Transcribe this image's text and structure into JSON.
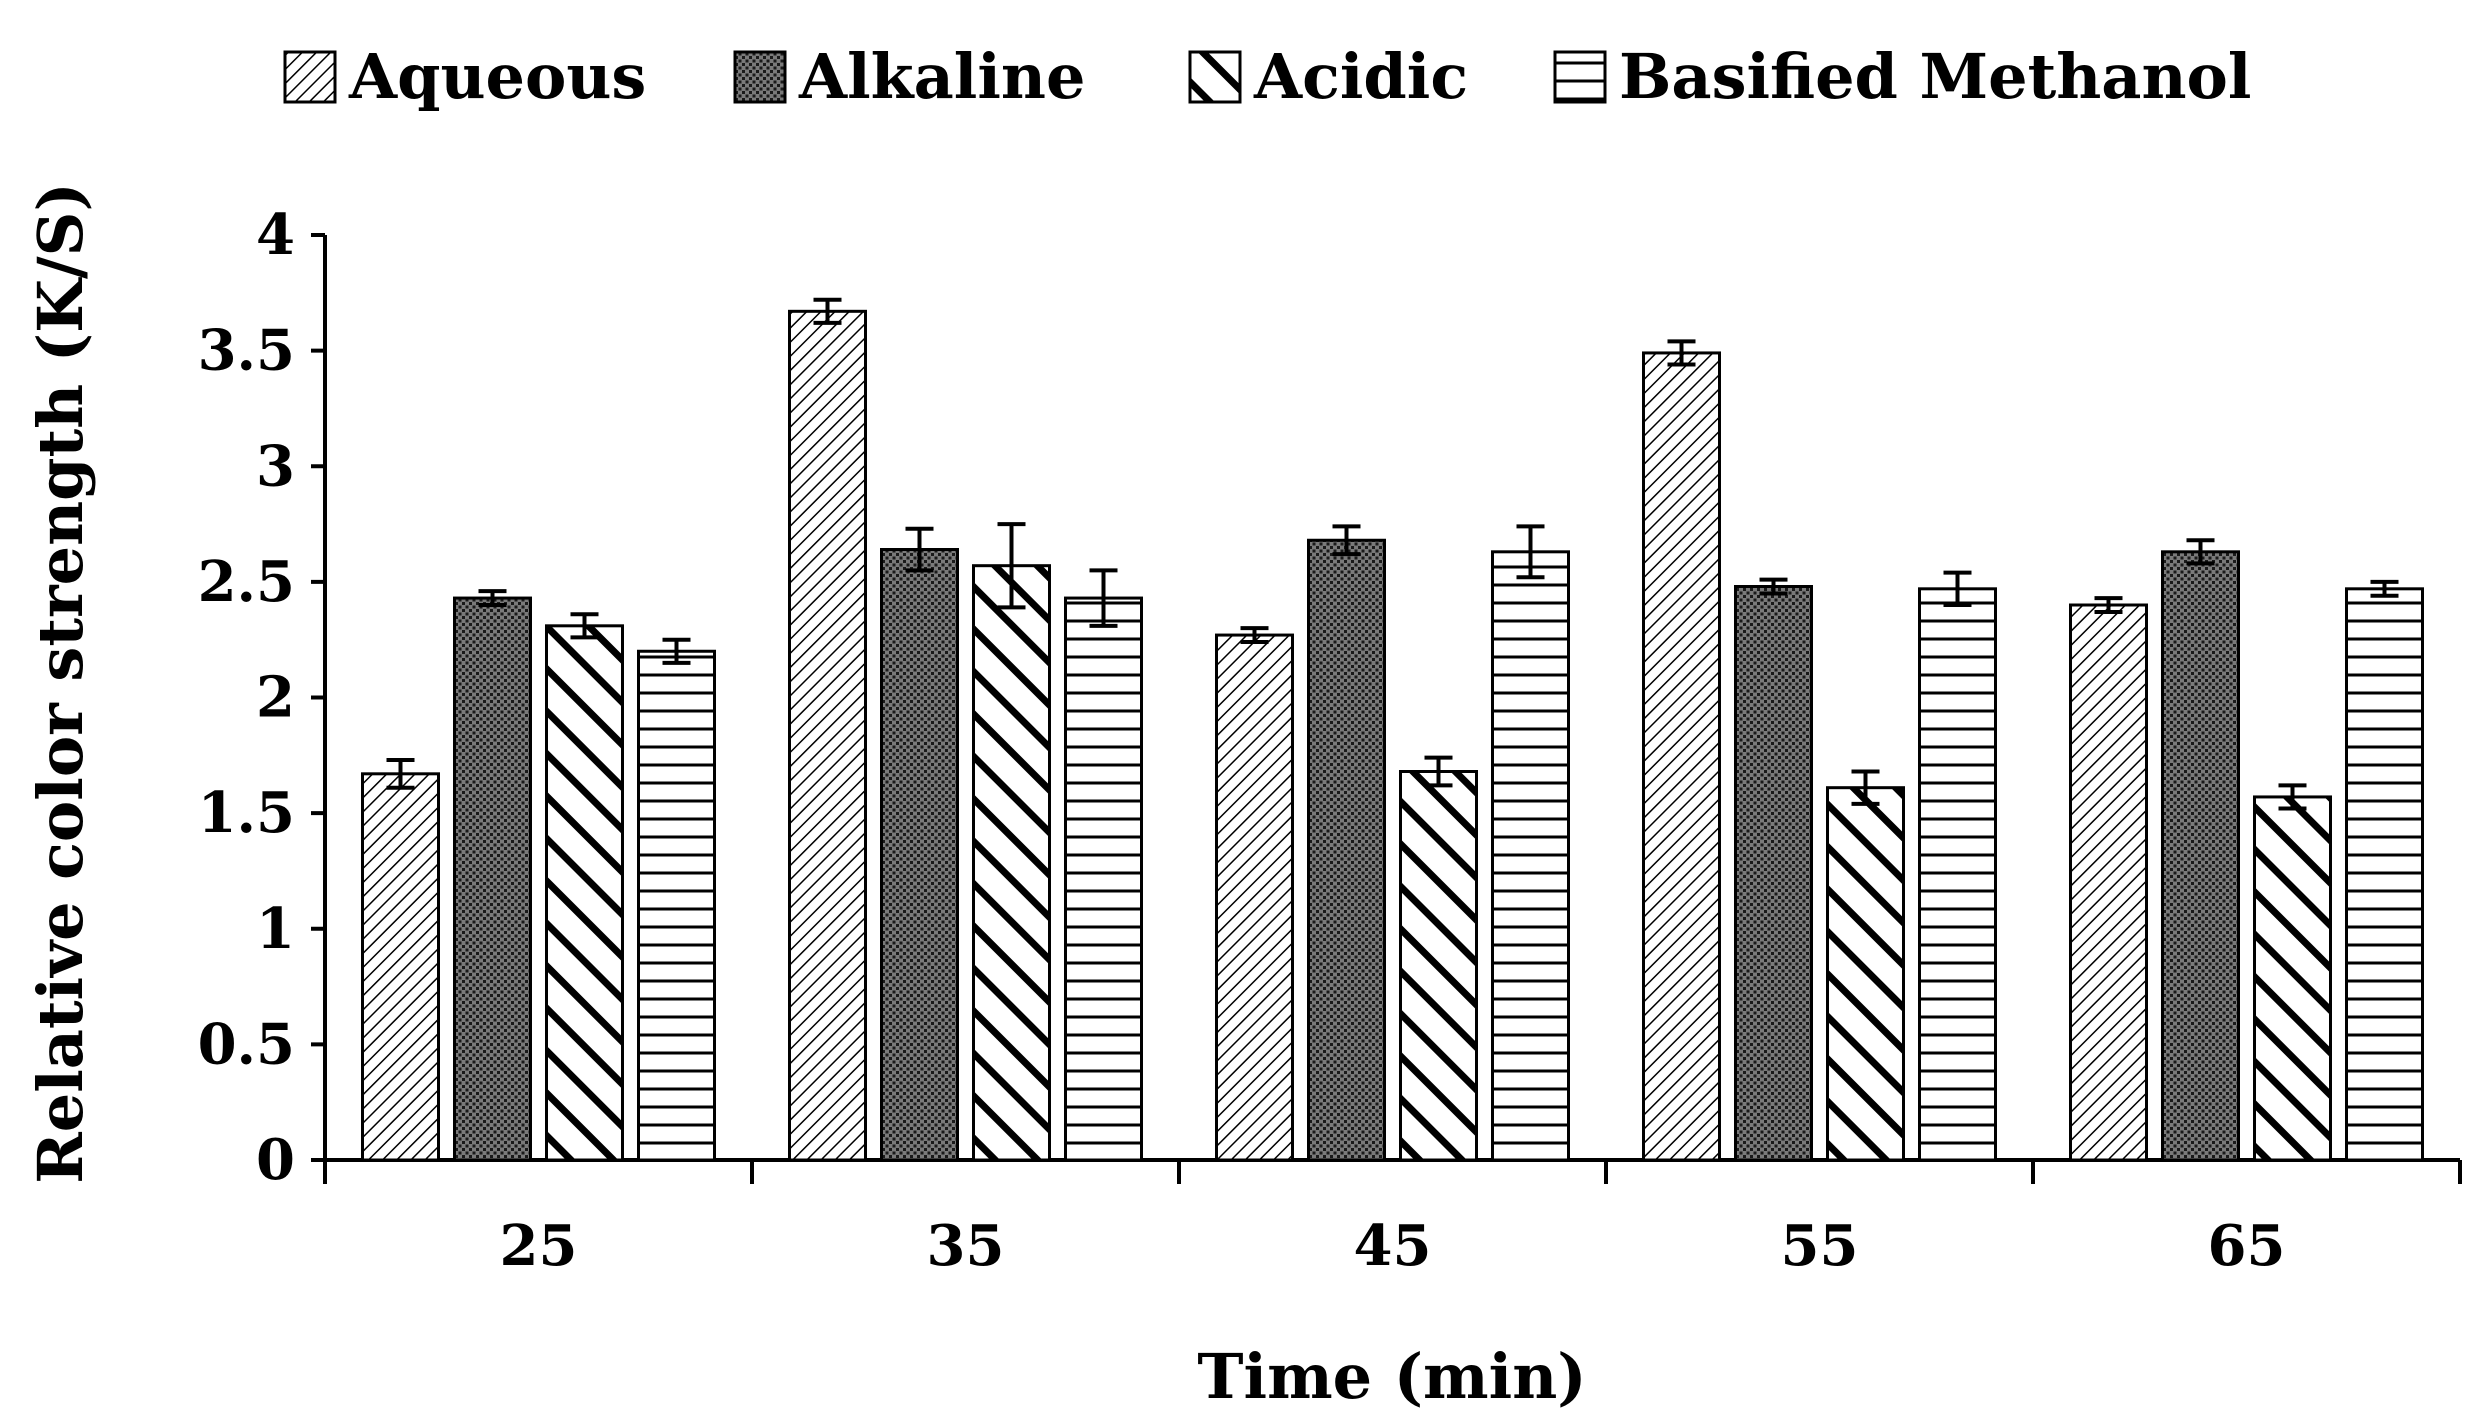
{
  "chart_data": {
    "type": "bar",
    "title": "",
    "xlabel": "Time (min)",
    "ylabel": "Relative color strength (K/S)",
    "ylim": [
      0,
      4
    ],
    "yticks": [
      "0",
      "0.5",
      "1",
      "1.5",
      "2",
      "2.5",
      "3",
      "3.5",
      "4"
    ],
    "categories": [
      "25",
      "35",
      "45",
      "55",
      "65"
    ],
    "legend_position": "top",
    "grid": false,
    "series": [
      {
        "name": "Aqueous",
        "pattern": "diagonal-fine",
        "values": [
          1.67,
          3.67,
          2.27,
          3.49,
          2.4
        ],
        "errors": [
          0.06,
          0.05,
          0.03,
          0.05,
          0.03
        ]
      },
      {
        "name": "Alkaline",
        "pattern": "crosshatch-dense",
        "values": [
          2.43,
          2.64,
          2.68,
          2.48,
          2.63
        ],
        "errors": [
          0.03,
          0.09,
          0.06,
          0.03,
          0.05
        ]
      },
      {
        "name": "Acidic",
        "pattern": "back-diagonal-wide",
        "values": [
          2.31,
          2.57,
          1.68,
          1.61,
          1.57
        ],
        "errors": [
          0.05,
          0.18,
          0.06,
          0.07,
          0.05
        ]
      },
      {
        "name": "Basified Methanol",
        "pattern": "horizontal-lines",
        "values": [
          2.2,
          2.43,
          2.63,
          2.47,
          2.47
        ],
        "errors": [
          0.05,
          0.12,
          0.11,
          0.07,
          0.03
        ]
      }
    ]
  }
}
